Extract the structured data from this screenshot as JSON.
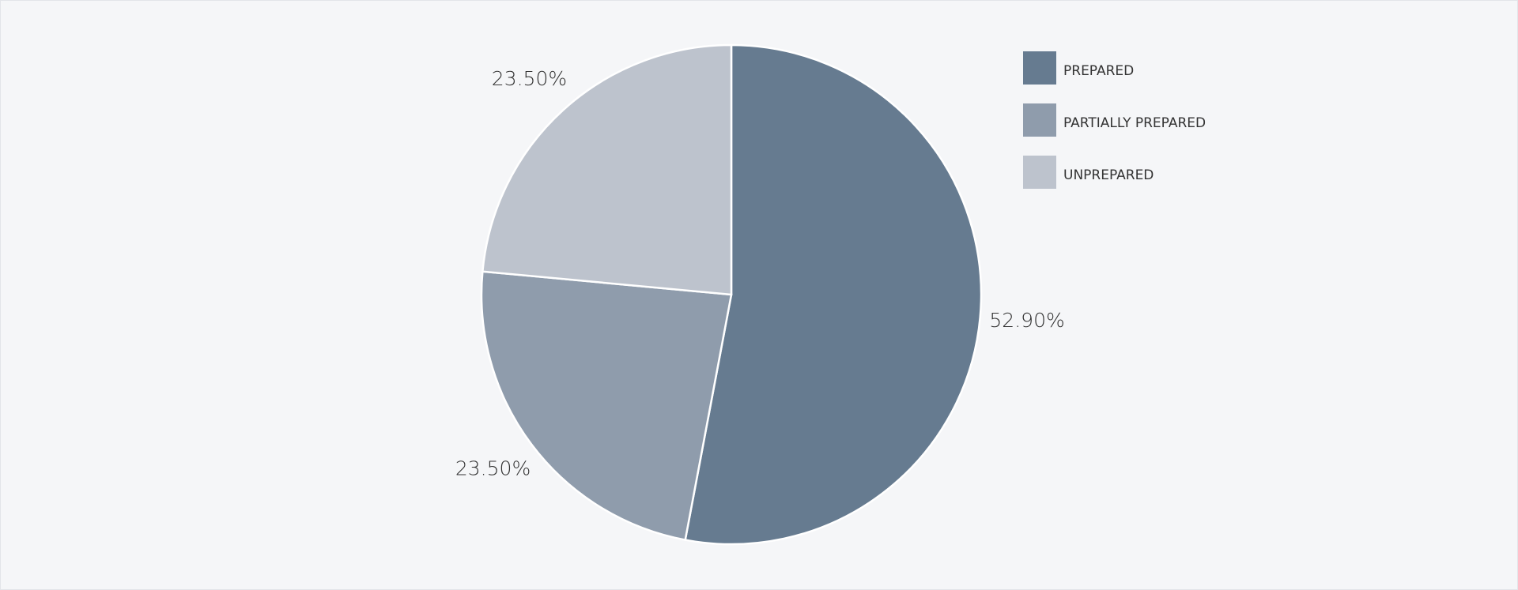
{
  "chart_data": {
    "type": "pie",
    "categories": [
      "PREPARED",
      "PARTIALLY PREPARED",
      "UNPREPARED"
    ],
    "values": [
      52.9,
      23.5,
      23.5
    ],
    "value_labels": [
      "52.90%",
      "23.50%",
      "23.50%"
    ],
    "colors": [
      "#667b90",
      "#8f9cac",
      "#bdc3cd"
    ],
    "legend": "top-right"
  }
}
